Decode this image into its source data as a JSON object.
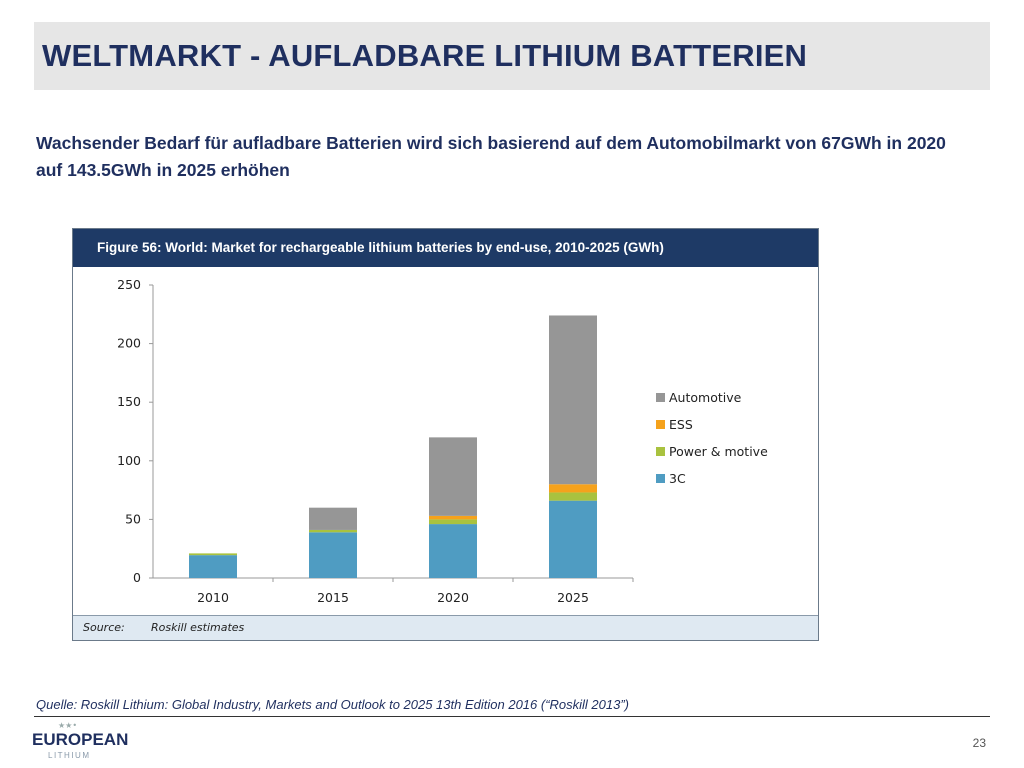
{
  "slide": {
    "title": "WELTMARKT - AUFLADBARE LITHIUM BATTERIEN",
    "subtitle": "Wachsender Bedarf für aufladbare Batterien wird sich basierend auf dem Automobilmarkt von 67GWh in 2020 auf 143.5GWh in 2025 erhöhen",
    "quelle": "Quelle: Roskill Lithium: Global Industry, Markets and Outlook to 2025 13th Edition 2016 (“Roskill 2013”)",
    "page_number": "23",
    "logo": {
      "line1": "EUROPEAN",
      "line2": "LITHIUM"
    }
  },
  "chart_data": {
    "type": "bar",
    "stacked": true,
    "title": "Figure 56: World: Market for rechargeable lithium batteries by end-use, 2010-2025 (GWh)",
    "source_label": "Source:",
    "source_text": "Roskill estimates",
    "categories": [
      "2010",
      "2015",
      "2020",
      "2025"
    ],
    "ylim": [
      0,
      250
    ],
    "yticks": [
      "0",
      "50",
      "100",
      "150",
      "200",
      "250"
    ],
    "legend_position": "right",
    "grid": false,
    "series": [
      {
        "name": "3C",
        "color": "#4f9cc2",
        "values": [
          19.5,
          39,
          46,
          66
        ]
      },
      {
        "name": "Power & motive",
        "color": "#a9c23f",
        "values": [
          1.5,
          2,
          4,
          7
        ]
      },
      {
        "name": "ESS",
        "color": "#f5a21c",
        "values": [
          0,
          0,
          3,
          7
        ]
      },
      {
        "name": "Automotive",
        "color": "#969696",
        "values": [
          0,
          19,
          67,
          144
        ]
      }
    ]
  }
}
